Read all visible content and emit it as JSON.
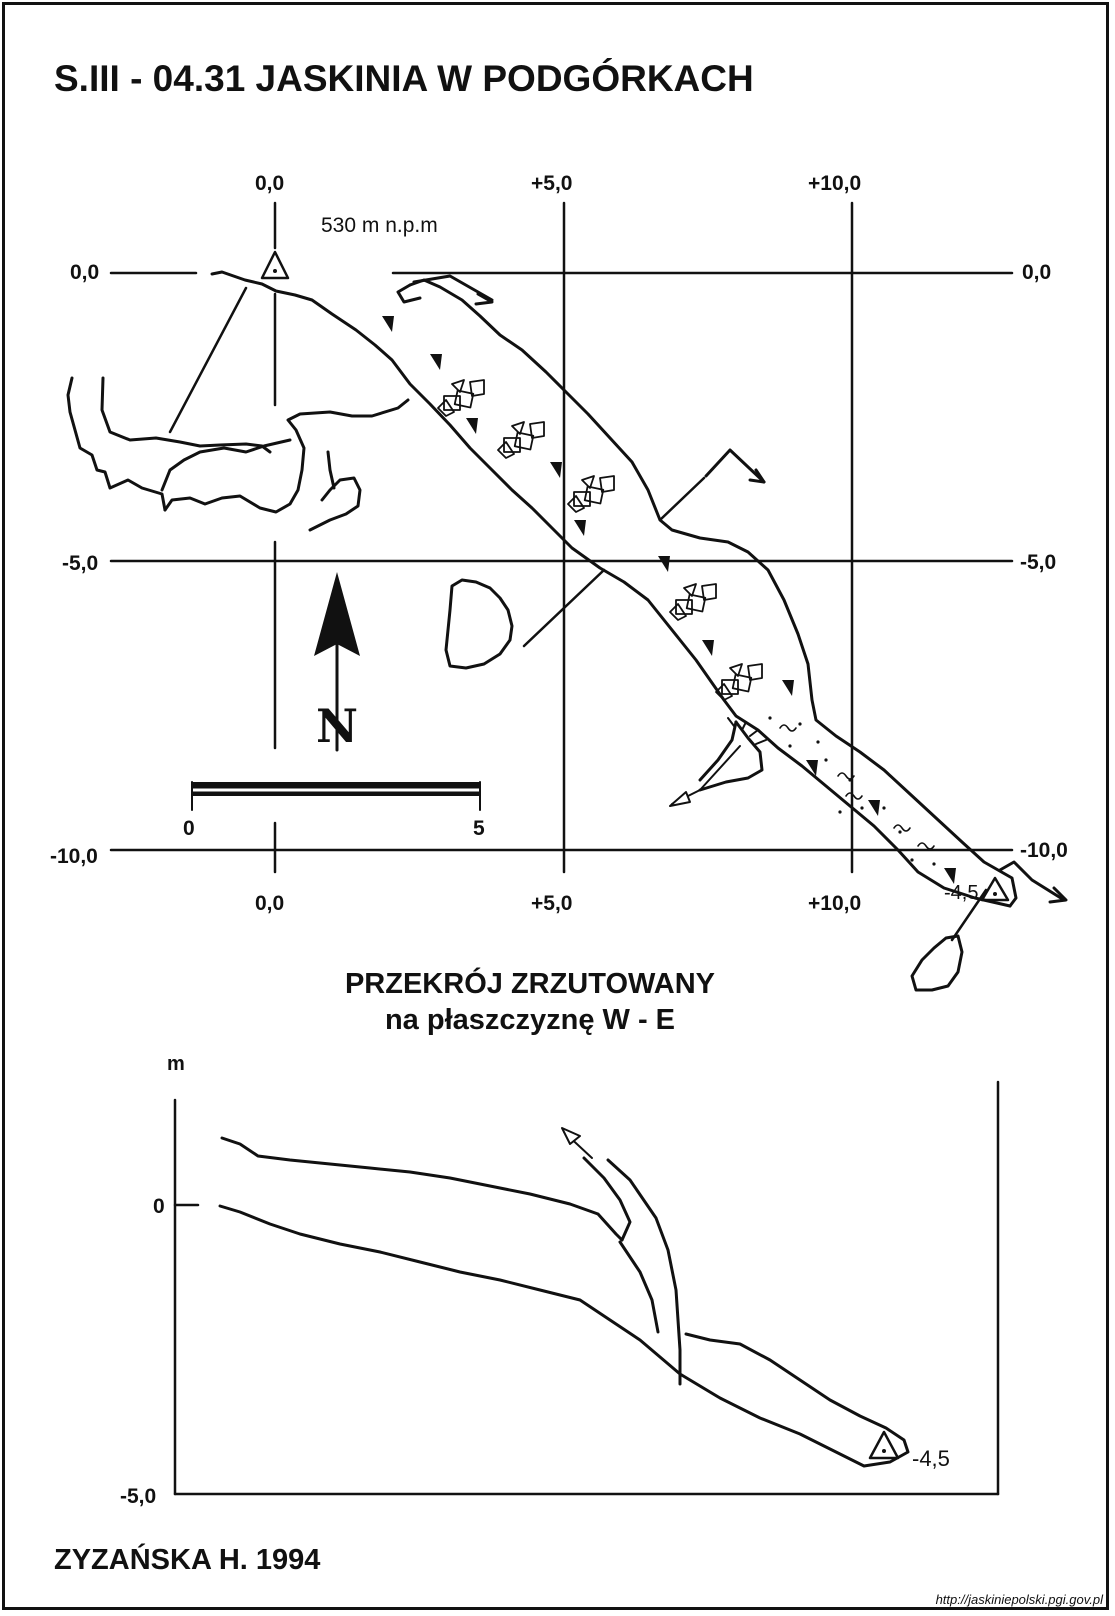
{
  "title": "S.III - 04.31  JASKINIA W PODGÓRKACH",
  "elevation": "530 m n.p.m",
  "grid": {
    "top_labels": [
      "0,0",
      "+5,0",
      "+10,0"
    ],
    "bottom_labels": [
      "0,0",
      "+5,0",
      "+10,0"
    ],
    "left_labels": [
      "0,0",
      "-5,0",
      "-10,0"
    ],
    "right_labels": [
      "0,0",
      "-5,0",
      "-10,0"
    ]
  },
  "north": "N",
  "scale": {
    "start": "0",
    "end": "5"
  },
  "plan_end_depth": "-4,5",
  "section": {
    "title": "PRZEKRÓJ ZRZUTOWANY",
    "subtitle": "na płaszczyznę W - E",
    "unit": "m",
    "y_labels": [
      "0",
      "-5,0"
    ],
    "end_depth": "-4,5"
  },
  "author": "ZYZAŃSKA H. 1994",
  "source_url": "http://jaskiniepolski.pgi.gov.pl"
}
